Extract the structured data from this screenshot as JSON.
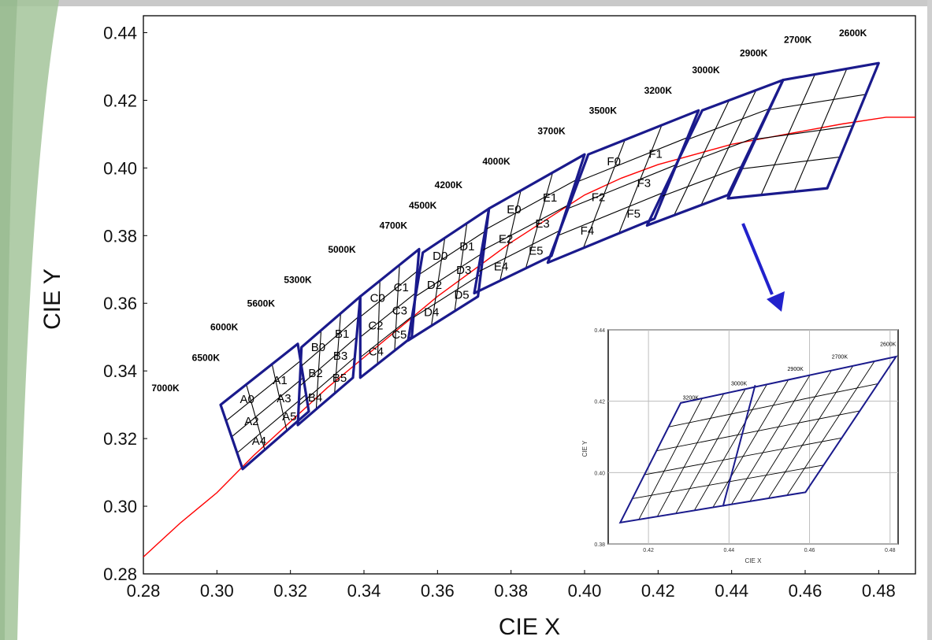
{
  "colors": {
    "accent_green": "#a3c49a",
    "frame_gray": "#c9c9c9",
    "bin_blue": "#1a1a8c",
    "locus_red": "#ff0000",
    "arrow_blue": "#2222cc"
  },
  "chart_data": [
    {
      "type": "line",
      "title": "",
      "xlabel": "CIE X",
      "ylabel": "CIE Y",
      "xlim": [
        0.28,
        0.49
      ],
      "ylim": [
        0.28,
        0.445
      ],
      "x_ticks": [
        "0.28",
        "0.30",
        "0.32",
        "0.34",
        "0.36",
        "0.38",
        "0.40",
        "0.42",
        "0.44",
        "0.46",
        "0.48"
      ],
      "y_ticks": [
        "0.28",
        "0.30",
        "0.32",
        "0.34",
        "0.36",
        "0.38",
        "0.40",
        "0.42",
        "0.44"
      ],
      "grid": false,
      "series": [
        {
          "x": [
            0.28,
            0.285,
            0.29,
            0.3,
            0.31,
            0.32,
            0.33,
            0.34,
            0.35,
            0.36,
            0.37,
            0.38,
            0.39,
            0.4,
            0.41,
            0.42,
            0.43,
            0.44,
            0.45,
            0.46,
            0.47,
            0.479,
            0.482,
            0.49
          ],
          "y": [
            0.285,
            0.29,
            0.295,
            0.304,
            0.315,
            0.325,
            0.335,
            0.344,
            0.353,
            0.362,
            0.37,
            0.378,
            0.385,
            0.392,
            0.397,
            0.401,
            0.404,
            0.407,
            0.409,
            0.411,
            0.413,
            0.4145,
            0.415,
            0.415
          ]
        }
      ],
      "cct_labels": [
        {
          "text": "7000K",
          "x": 0.286,
          "y": 0.334
        },
        {
          "text": "6500K",
          "x": 0.297,
          "y": 0.343
        },
        {
          "text": "6000K",
          "x": 0.302,
          "y": 0.352
        },
        {
          "text": "5600K",
          "x": 0.312,
          "y": 0.359
        },
        {
          "text": "5300K",
          "x": 0.322,
          "y": 0.366
        },
        {
          "text": "5000K",
          "x": 0.334,
          "y": 0.375
        },
        {
          "text": "4700K",
          "x": 0.348,
          "y": 0.382
        },
        {
          "text": "4500K",
          "x": 0.356,
          "y": 0.388
        },
        {
          "text": "4200K",
          "x": 0.363,
          "y": 0.394
        },
        {
          "text": "4000K",
          "x": 0.376,
          "y": 0.401
        },
        {
          "text": "3700K",
          "x": 0.391,
          "y": 0.41
        },
        {
          "text": "3500K",
          "x": 0.405,
          "y": 0.416
        },
        {
          "text": "3200K",
          "x": 0.42,
          "y": 0.422
        },
        {
          "text": "3000K",
          "x": 0.433,
          "y": 0.428
        },
        {
          "text": "2900K",
          "x": 0.446,
          "y": 0.433
        },
        {
          "text": "2700K",
          "x": 0.458,
          "y": 0.437
        },
        {
          "text": "2600K",
          "x": 0.473,
          "y": 0.439
        }
      ],
      "bin_groups": [
        {
          "name": "A",
          "corners": [
            [
              0.301,
              0.33
            ],
            [
              0.322,
              0.348
            ],
            [
              0.325,
              0.328
            ],
            [
              0.307,
              0.311
            ]
          ],
          "labels": [
            "A0",
            "A1",
            "A2",
            "A3",
            "A4",
            "A5"
          ]
        },
        {
          "name": "B",
          "corners": [
            [
              0.323,
              0.347
            ],
            [
              0.339,
              0.362
            ],
            [
              0.337,
              0.338
            ],
            [
              0.322,
              0.324
            ]
          ],
          "labels": [
            "B0",
            "B1",
            "B2",
            "B3",
            "B4",
            "B5"
          ]
        },
        {
          "name": "C",
          "corners": [
            [
              0.339,
              0.362
            ],
            [
              0.355,
              0.376
            ],
            [
              0.353,
              0.35
            ],
            [
              0.339,
              0.338
            ]
          ],
          "labels": [
            "C0",
            "C1",
            "C2",
            "C3",
            "C4",
            "C5"
          ]
        },
        {
          "name": "D",
          "corners": [
            [
              0.356,
              0.375
            ],
            [
              0.374,
              0.388
            ],
            [
              0.371,
              0.362
            ],
            [
              0.352,
              0.349
            ]
          ],
          "labels": [
            "D0",
            "D1",
            "D2",
            "D3",
            "D4",
            "D5"
          ]
        },
        {
          "name": "E",
          "corners": [
            [
              0.374,
              0.388
            ],
            [
              0.4,
              0.404
            ],
            [
              0.391,
              0.374
            ],
            [
              0.37,
              0.363
            ]
          ],
          "labels": [
            "E0",
            "E1",
            "E2",
            "E3",
            "E4",
            "E5"
          ]
        },
        {
          "name": "F",
          "corners": [
            [
              0.401,
              0.404
            ],
            [
              0.431,
              0.417
            ],
            [
              0.419,
              0.385
            ],
            [
              0.39,
              0.372
            ]
          ],
          "labels": [
            "F0",
            "F1",
            "F2",
            "F3",
            "F4",
            "F5"
          ]
        },
        {
          "name": "G",
          "corners": [
            [
              0.432,
              0.417
            ],
            [
              0.454,
              0.426
            ],
            [
              0.439,
              0.392
            ],
            [
              0.417,
              0.383
            ]
          ],
          "labels": []
        },
        {
          "name": "H",
          "corners": [
            [
              0.454,
              0.426
            ],
            [
              0.48,
              0.431
            ],
            [
              0.466,
              0.394
            ],
            [
              0.439,
              0.391
            ]
          ],
          "labels": []
        }
      ]
    },
    {
      "type": "line",
      "title": "",
      "xlabel": "CIE X",
      "ylabel": "CIE Y",
      "xlim": [
        0.41,
        0.482
      ],
      "ylim": [
        0.38,
        0.44
      ],
      "x_ticks": [
        "0.42",
        "0.44",
        "0.46",
        "0.48"
      ],
      "y_ticks": [
        "0.38",
        "0.40",
        "0.42",
        "0.44"
      ],
      "grid": true,
      "cct_labels": [
        {
          "text": "3200K",
          "x": 0.4305,
          "y": 0.4205
        },
        {
          "text": "3000K",
          "x": 0.4425,
          "y": 0.4245
        },
        {
          "text": "2900K",
          "x": 0.4565,
          "y": 0.4285
        },
        {
          "text": "2700K",
          "x": 0.4675,
          "y": 0.432
        },
        {
          "text": "2600K",
          "x": 0.4795,
          "y": 0.4355
        }
      ],
      "outline": [
        [
          0.413,
          0.386
        ],
        [
          0.428,
          0.4195
        ],
        [
          0.4815,
          0.4325
        ],
        [
          0.459,
          0.3945
        ]
      ],
      "divider": [
        [
          0.4465,
          0.4245
        ],
        [
          0.4385,
          0.3905
        ]
      ]
    }
  ]
}
